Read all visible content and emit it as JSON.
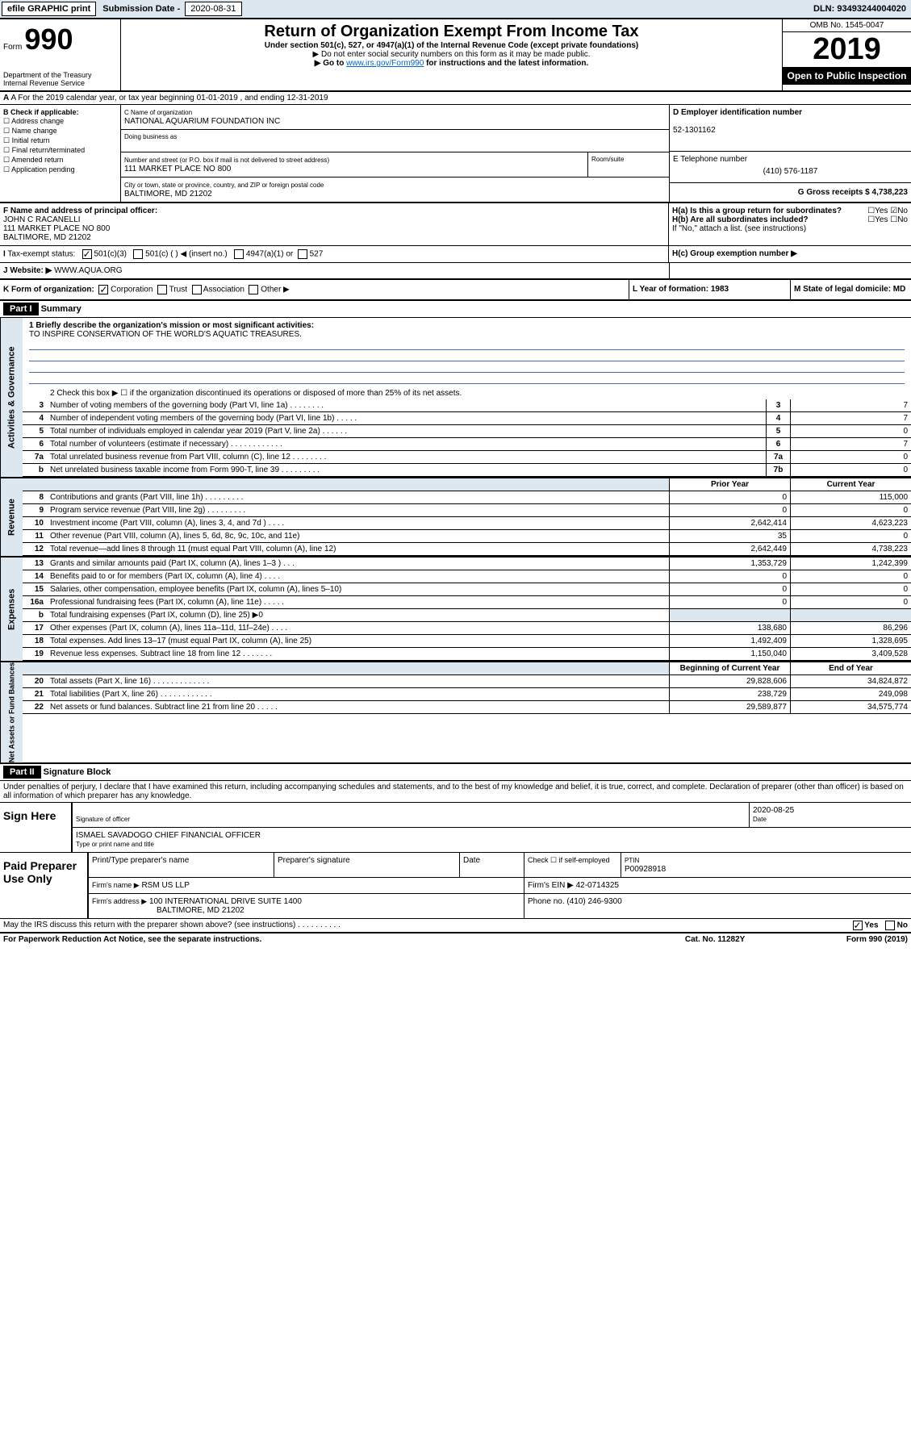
{
  "top": {
    "efile": "efile GRAPHIC print",
    "sub_label": "Submission Date - 2020-08-31",
    "dln": "DLN: 93493244004020"
  },
  "header": {
    "form_prefix": "Form",
    "form_num": "990",
    "dept": "Department of the Treasury\nInternal Revenue Service",
    "title": "Return of Organization Exempt From Income Tax",
    "sub1": "Under section 501(c), 527, or 4947(a)(1) of the Internal Revenue Code (except private foundations)",
    "sub2": "▶ Do not enter social security numbers on this form as it may be made public.",
    "sub3_pre": "▶ Go to ",
    "sub3_link": "www.irs.gov/Form990",
    "sub3_post": " for instructions and the latest information.",
    "omb": "OMB No. 1545-0047",
    "year": "2019",
    "badge": "Open to Public Inspection"
  },
  "row_a": "A For the 2019 calendar year, or tax year beginning 01-01-2019   , and ending 12-31-2019",
  "col_b": {
    "heading": "B Check if applicable:",
    "items": [
      "Address change",
      "Name change",
      "Initial return",
      "Final return/terminated",
      "Amended return",
      "Application pending"
    ]
  },
  "name_box": {
    "c_label": "C Name of organization",
    "c_name": "NATIONAL AQUARIUM FOUNDATION INC",
    "dba": "Doing business as",
    "addr_label": "Number and street (or P.O. box if mail is not delivered to street address)",
    "room": "Room/suite",
    "addr": "111 MARKET PLACE NO 800",
    "city_label": "City or town, state or province, country, and ZIP or foreign postal code",
    "city": "BALTIMORE, MD  21202"
  },
  "right_box": {
    "d_label": "D Employer identification number",
    "d_ein": "52-1301162",
    "e_label": "E Telephone number",
    "e_phone": "(410) 576-1187",
    "g": "G Gross receipts $ 4,738,223"
  },
  "f_box": {
    "label": "F  Name and address of principal officer:",
    "name": "JOHN C RACANELLI",
    "addr1": "111 MARKET PLACE NO 800",
    "addr2": "BALTIMORE, MD  21202"
  },
  "h_box": {
    "ha": "H(a)  Is this a group return for subordinates?",
    "hb": "H(b)  Are all subordinates included?",
    "hb2": "If \"No,\" attach a list. (see instructions)",
    "hc": "H(c)  Group exemption number ▶"
  },
  "tax_status": {
    "label": "Tax-exempt status:",
    "o1": "501(c)(3)",
    "o2": "501(c) (   ) ◀ (insert no.)",
    "o3": "4947(a)(1) or",
    "o4": "527"
  },
  "website": {
    "label": "J  Website: ▶",
    "val": "WWW.AQUA.ORG"
  },
  "row_k": {
    "label": "K Form of organization:",
    "o1": "Corporation",
    "o2": "Trust",
    "o3": "Association",
    "o4": "Other ▶",
    "l": "L Year of formation: 1983",
    "m": "M State of legal domicile: MD"
  },
  "part1": {
    "tab": "Part I",
    "title": "Summary"
  },
  "mission": {
    "q": "1  Briefly describe the organization's mission or most significant activities:",
    "text": "TO INSPIRE CONSERVATION OF THE WORLD'S AQUATIC TREASURES."
  },
  "line2": "2    Check this box ▶ ☐  if the organization discontinued its operations or disposed of more than 25% of its net assets.",
  "rows_gov": [
    {
      "n": "3",
      "d": "Number of voting members of the governing body (Part VI, line 1a)  .   .   .   .   .   .   .   .",
      "cn": "3",
      "v": "7"
    },
    {
      "n": "4",
      "d": "Number of independent voting members of the governing body (Part VI, line 1b)  .   .   .   .   .",
      "cn": "4",
      "v": "7"
    },
    {
      "n": "5",
      "d": "Total number of individuals employed in calendar year 2019 (Part V, line 2a)  .   .   .   .   .   .",
      "cn": "5",
      "v": "0"
    },
    {
      "n": "6",
      "d": "Total number of volunteers (estimate if necessary)  .   .   .   .   .   .   .   .   .   .   .   .",
      "cn": "6",
      "v": "7"
    },
    {
      "n": "7a",
      "d": "Total unrelated business revenue from Part VIII, column (C), line 12  .   .   .   .   .   .   .   .",
      "cn": "7a",
      "v": "0"
    },
    {
      "n": "b",
      "d": "Net unrelated business taxable income from Form 990-T, line 39  .   .   .   .   .   .   .   .   .",
      "cn": "7b",
      "v": "0"
    }
  ],
  "col_headers": {
    "prior": "Prior Year",
    "current": "Current Year"
  },
  "rows_rev": [
    {
      "n": "8",
      "d": "Contributions and grants (Part VIII, line 1h)  .   .   .   .   .   .   .   .   .",
      "v1": "0",
      "v2": "115,000"
    },
    {
      "n": "9",
      "d": "Program service revenue (Part VIII, line 2g)  .   .   .   .   .   .   .   .   .",
      "v1": "0",
      "v2": "0"
    },
    {
      "n": "10",
      "d": "Investment income (Part VIII, column (A), lines 3, 4, and 7d )  .   .   .   .",
      "v1": "2,642,414",
      "v2": "4,623,223"
    },
    {
      "n": "11",
      "d": "Other revenue (Part VIII, column (A), lines 5, 6d, 8c, 9c, 10c, and 11e)",
      "v1": "35",
      "v2": "0"
    },
    {
      "n": "12",
      "d": "Total revenue—add lines 8 through 11 (must equal Part VIII, column (A), line 12)",
      "v1": "2,642,449",
      "v2": "4,738,223"
    }
  ],
  "rows_exp": [
    {
      "n": "13",
      "d": "Grants and similar amounts paid (Part IX, column (A), lines 1–3 )   .   .   .",
      "v1": "1,353,729",
      "v2": "1,242,399"
    },
    {
      "n": "14",
      "d": "Benefits paid to or for members (Part IX, column (A), line 4)  .   .   .   .",
      "v1": "0",
      "v2": "0"
    },
    {
      "n": "15",
      "d": "Salaries, other compensation, employee benefits (Part IX, column (A), lines 5–10)",
      "v1": "0",
      "v2": "0"
    },
    {
      "n": "16a",
      "d": "Professional fundraising fees (Part IX, column (A), line 11e)  .   .   .   .   .",
      "v1": "0",
      "v2": "0"
    },
    {
      "n": "b",
      "d": "Total fundraising expenses (Part IX, column (D), line 25) ▶0",
      "v1": "",
      "v2": "",
      "shade": true
    },
    {
      "n": "17",
      "d": "Other expenses (Part IX, column (A), lines 11a–11d, 11f–24e)  .   .   .   .",
      "v1": "138,680",
      "v2": "86,296"
    },
    {
      "n": "18",
      "d": "Total expenses. Add lines 13–17 (must equal Part IX, column (A), line 25)",
      "v1": "1,492,409",
      "v2": "1,328,695"
    },
    {
      "n": "19",
      "d": "Revenue less expenses. Subtract line 18 from line 12  .   .   .   .   .   .   .",
      "v1": "1,150,040",
      "v2": "3,409,528"
    }
  ],
  "col_headers2": {
    "beg": "Beginning of Current Year",
    "end": "End of Year"
  },
  "rows_net": [
    {
      "n": "20",
      "d": "Total assets (Part X, line 16)  .   .   .   .   .   .   .   .   .   .   .   .   .",
      "v1": "29,828,606",
      "v2": "34,824,872"
    },
    {
      "n": "21",
      "d": "Total liabilities (Part X, line 26)  .   .   .   .   .   .   .   .   .   .   .   .",
      "v1": "238,729",
      "v2": "249,098"
    },
    {
      "n": "22",
      "d": "Net assets or fund balances. Subtract line 21 from line 20  .   .   .   .   .",
      "v1": "29,589,877",
      "v2": "34,575,774"
    }
  ],
  "part2": {
    "tab": "Part II",
    "title": "Signature Block"
  },
  "perjury": "Under penalties of perjury, I declare that I have examined this return, including accompanying schedules and statements, and to the best of my knowledge and belief, it is true, correct, and complete. Declaration of preparer (other than officer) is based on all information of which preparer has any knowledge.",
  "sign": {
    "here": "Sign Here",
    "sig_label": "Signature of officer",
    "date": "2020-08-25",
    "date_label": "Date",
    "name": "ISMAEL SAVADOGO  CHIEF FINANCIAL OFFICER",
    "name_label": "Type or print name and title"
  },
  "prep": {
    "title": "Paid Preparer Use Only",
    "h1": "Print/Type preparer's name",
    "h2": "Preparer's signature",
    "h3": "Date",
    "h4_pre": "Check ☐ if self-employed",
    "ptin": "PTIN",
    "ptin_v": "P00928918",
    "firm_label": "Firm's name    ▶",
    "firm": "RSM US LLP",
    "firm_ein": "Firm's EIN ▶ 42-0714325",
    "addr_label": "Firm's address ▶",
    "addr": "100 INTERNATIONAL DRIVE SUITE 1400",
    "addr2": "BALTIMORE, MD  21202",
    "phone": "Phone no. (410) 246-9300"
  },
  "footer": {
    "q": "May the IRS discuss this return with the preparer shown above? (see instructions)   .   .   .   .   .   .   .   .   .   .",
    "yes": "Yes",
    "no": "No",
    "pra": "For Paperwork Reduction Act Notice, see the separate instructions.",
    "cat": "Cat. No. 11282Y",
    "form": "Form 990 (2019)"
  },
  "side_labels": {
    "gov": "Activities & Governance",
    "rev": "Revenue",
    "exp": "Expenses",
    "net": "Net Assets or Fund Balances"
  }
}
